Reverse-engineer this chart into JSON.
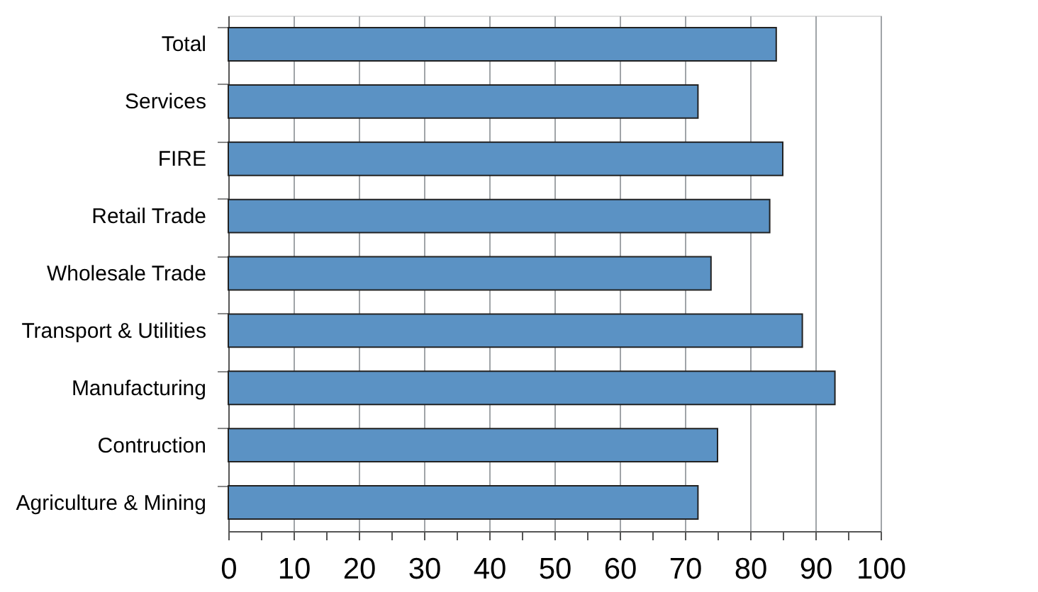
{
  "chart_data": {
    "type": "bar",
    "orientation": "horizontal",
    "categories": [
      "Total",
      "Services",
      "FIRE",
      "Retail Trade",
      "Wholesale Trade",
      "Transport & Utilities",
      "Manufacturing",
      "Contruction",
      "Agriculture & Mining"
    ],
    "values": [
      84,
      72,
      85,
      83,
      74,
      88,
      93,
      75,
      72
    ],
    "color": "#5b92c4",
    "xlim": [
      0,
      100
    ],
    "xticks": [
      0,
      {
        "value": 5,
        "label": null
      },
      10,
      {
        "value": 15,
        "label": null
      },
      20,
      {
        "value": 25,
        "label": null
      },
      30,
      {
        "value": 35,
        "label": null
      },
      40,
      {
        "value": 45,
        "label": null
      },
      50,
      {
        "value": 55,
        "label": null
      },
      60,
      {
        "value": 65,
        "label": null
      },
      70,
      {
        "value": 75,
        "label": null
      },
      80,
      {
        "value": 85,
        "label": null
      },
      90,
      {
        "value": 95,
        "label": null
      },
      100
    ],
    "grid": "x"
  }
}
